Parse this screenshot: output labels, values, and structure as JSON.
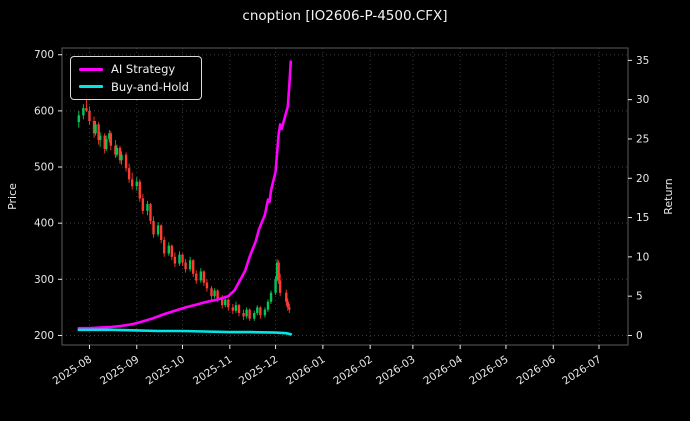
{
  "window": {
    "title": "cnoption [IO2606-P-4500.CFX]"
  },
  "colors": {
    "background": "#000000",
    "ai_strategy": "#ff00ff",
    "buy_and_hold": "#00e5e5",
    "candle_up": "#00c853",
    "candle_down": "#ff3b30",
    "grid": "#3a3a3a",
    "axis_text": "#e8e8e8",
    "spine": "#5a5a5a"
  },
  "chart_data": {
    "type": "candlestick+line",
    "title": "cnoption [IO2606-P-4500.CFX]",
    "ylabel_left": "Price",
    "ylabel_right": "Return",
    "grid": true,
    "legend_position": "upper-left",
    "x_ticks": [
      "2025-08",
      "2025-09",
      "2025-10",
      "2025-11",
      "2025-12",
      "2026-01",
      "2026-02",
      "2026-03",
      "2026-04",
      "2026-05",
      "2026-06",
      "2026-07"
    ],
    "y_ticks_left": [
      200,
      300,
      400,
      500,
      600,
      700
    ],
    "y_ticks_right": [
      0,
      5,
      10,
      15,
      20,
      25,
      30,
      35
    ],
    "ylim_left": [
      183,
      712
    ],
    "xlim": [
      "2025-07-14",
      "2026-07-20"
    ],
    "right_scale": {
      "price_at_zero": 200,
      "price_per_unit": 14
    },
    "candles": [
      [
        "2025-07-25",
        580,
        600,
        570,
        592
      ],
      [
        "2025-07-28",
        592,
        612,
        585,
        605
      ],
      [
        "2025-07-30",
        605,
        632,
        598,
        600
      ],
      [
        "2025-08-01",
        600,
        608,
        575,
        582
      ],
      [
        "2025-08-04",
        582,
        590,
        552,
        560
      ],
      [
        "2025-08-05",
        560,
        582,
        556,
        576
      ],
      [
        "2025-08-07",
        576,
        580,
        540,
        548
      ],
      [
        "2025-08-08",
        548,
        562,
        536,
        556
      ],
      [
        "2025-08-11",
        556,
        560,
        524,
        532
      ],
      [
        "2025-08-12",
        532,
        556,
        528,
        550
      ],
      [
        "2025-08-14",
        550,
        566,
        544,
        560
      ],
      [
        "2025-08-15",
        560,
        564,
        530,
        538
      ],
      [
        "2025-08-18",
        538,
        548,
        516,
        522
      ],
      [
        "2025-08-19",
        522,
        540,
        518,
        534
      ],
      [
        "2025-08-21",
        534,
        538,
        506,
        512
      ],
      [
        "2025-08-22",
        512,
        528,
        504,
        522
      ],
      [
        "2025-08-25",
        522,
        526,
        492,
        498
      ],
      [
        "2025-08-27",
        498,
        506,
        472,
        478
      ],
      [
        "2025-08-29",
        478,
        490,
        460,
        466
      ],
      [
        "2025-09-01",
        466,
        482,
        458,
        474
      ],
      [
        "2025-09-03",
        474,
        478,
        438,
        444
      ],
      [
        "2025-09-05",
        444,
        452,
        416,
        422
      ],
      [
        "2025-09-08",
        422,
        440,
        414,
        434
      ],
      [
        "2025-09-10",
        434,
        436,
        398,
        404
      ],
      [
        "2025-09-12",
        404,
        412,
        374,
        380
      ],
      [
        "2025-09-15",
        380,
        402,
        376,
        396
      ],
      [
        "2025-09-17",
        396,
        398,
        364,
        370
      ],
      [
        "2025-09-19",
        370,
        376,
        340,
        346
      ],
      [
        "2025-09-22",
        346,
        366,
        342,
        360
      ],
      [
        "2025-09-24",
        360,
        362,
        334,
        340
      ],
      [
        "2025-09-26",
        340,
        348,
        322,
        328
      ],
      [
        "2025-09-29",
        328,
        350,
        324,
        344
      ],
      [
        "2025-10-01",
        344,
        346,
        324,
        330
      ],
      [
        "2025-10-03",
        330,
        336,
        312,
        318
      ],
      [
        "2025-10-06",
        318,
        340,
        314,
        334
      ],
      [
        "2025-10-08",
        334,
        336,
        304,
        310
      ],
      [
        "2025-10-10",
        310,
        316,
        292,
        298
      ],
      [
        "2025-10-13",
        298,
        320,
        294,
        314
      ],
      [
        "2025-10-15",
        314,
        316,
        288,
        294
      ],
      [
        "2025-10-17",
        294,
        300,
        278,
        284
      ],
      [
        "2025-10-20",
        284,
        288,
        264,
        270
      ],
      [
        "2025-10-22",
        270,
        284,
        266,
        280
      ],
      [
        "2025-10-24",
        280,
        282,
        260,
        266
      ],
      [
        "2025-10-27",
        266,
        272,
        248,
        254
      ],
      [
        "2025-10-29",
        254,
        270,
        250,
        264
      ],
      [
        "2025-10-31",
        264,
        266,
        244,
        250
      ],
      [
        "2025-11-03",
        250,
        256,
        238,
        244
      ],
      [
        "2025-11-05",
        244,
        260,
        240,
        254
      ],
      [
        "2025-11-07",
        254,
        256,
        234,
        240
      ],
      [
        "2025-11-10",
        240,
        246,
        228,
        234
      ],
      [
        "2025-11-12",
        234,
        250,
        230,
        246
      ],
      [
        "2025-11-14",
        246,
        248,
        226,
        230
      ],
      [
        "2025-11-17",
        230,
        244,
        226,
        240
      ],
      [
        "2025-11-19",
        240,
        254,
        236,
        250
      ],
      [
        "2025-11-21",
        250,
        252,
        230,
        236
      ],
      [
        "2025-11-24",
        236,
        250,
        232,
        246
      ],
      [
        "2025-11-26",
        246,
        264,
        242,
        260
      ],
      [
        "2025-11-28",
        260,
        280,
        256,
        276
      ],
      [
        "2025-12-01",
        276,
        306,
        272,
        300
      ],
      [
        "2025-12-02",
        300,
        336,
        296,
        330
      ],
      [
        "2025-12-03",
        330,
        334,
        292,
        298
      ],
      [
        "2025-12-04",
        298,
        310,
        270,
        276
      ],
      [
        "2025-12-08",
        276,
        282,
        254,
        260
      ],
      [
        "2025-12-09",
        260,
        266,
        244,
        250
      ],
      [
        "2025-12-10",
        250,
        256,
        240,
        246
      ]
    ],
    "series": [
      {
        "name": "AI Strategy",
        "color": "#ff00ff",
        "axis": "left-price-equivalent",
        "points": [
          [
            "2025-07-25",
            213
          ],
          [
            "2025-08-01",
            213
          ],
          [
            "2025-08-08",
            214
          ],
          [
            "2025-08-15",
            215
          ],
          [
            "2025-08-22",
            217
          ],
          [
            "2025-08-29",
            220
          ],
          [
            "2025-09-05",
            225
          ],
          [
            "2025-09-12",
            231
          ],
          [
            "2025-09-19",
            238
          ],
          [
            "2025-09-26",
            244
          ],
          [
            "2025-10-03",
            250
          ],
          [
            "2025-10-10",
            255
          ],
          [
            "2025-10-17",
            260
          ],
          [
            "2025-10-24",
            264
          ],
          [
            "2025-10-31",
            270
          ],
          [
            "2025-11-04",
            280
          ],
          [
            "2025-11-07",
            295
          ],
          [
            "2025-11-11",
            315
          ],
          [
            "2025-11-14",
            340
          ],
          [
            "2025-11-18",
            368
          ],
          [
            "2025-11-20",
            388
          ],
          [
            "2025-11-24",
            415
          ],
          [
            "2025-11-26",
            442
          ],
          [
            "2025-11-27",
            438
          ],
          [
            "2025-11-28",
            458
          ],
          [
            "2025-12-01",
            492
          ],
          [
            "2025-12-02",
            525
          ],
          [
            "2025-12-03",
            558
          ],
          [
            "2025-12-04",
            576
          ],
          [
            "2025-12-05",
            568
          ],
          [
            "2025-12-08",
            598
          ],
          [
            "2025-12-09",
            608
          ],
          [
            "2025-12-10",
            645
          ],
          [
            "2025-12-11",
            688
          ]
        ]
      },
      {
        "name": "Buy-and-Hold",
        "color": "#00e5e5",
        "axis": "left-price-equivalent",
        "points": [
          [
            "2025-07-25",
            210
          ],
          [
            "2025-08-15",
            210
          ],
          [
            "2025-09-01",
            209
          ],
          [
            "2025-09-15",
            208
          ],
          [
            "2025-10-01",
            208
          ],
          [
            "2025-10-15",
            207
          ],
          [
            "2025-11-01",
            206
          ],
          [
            "2025-11-15",
            206
          ],
          [
            "2025-12-01",
            205
          ],
          [
            "2025-12-08",
            204
          ],
          [
            "2025-12-11",
            202
          ]
        ]
      }
    ]
  }
}
